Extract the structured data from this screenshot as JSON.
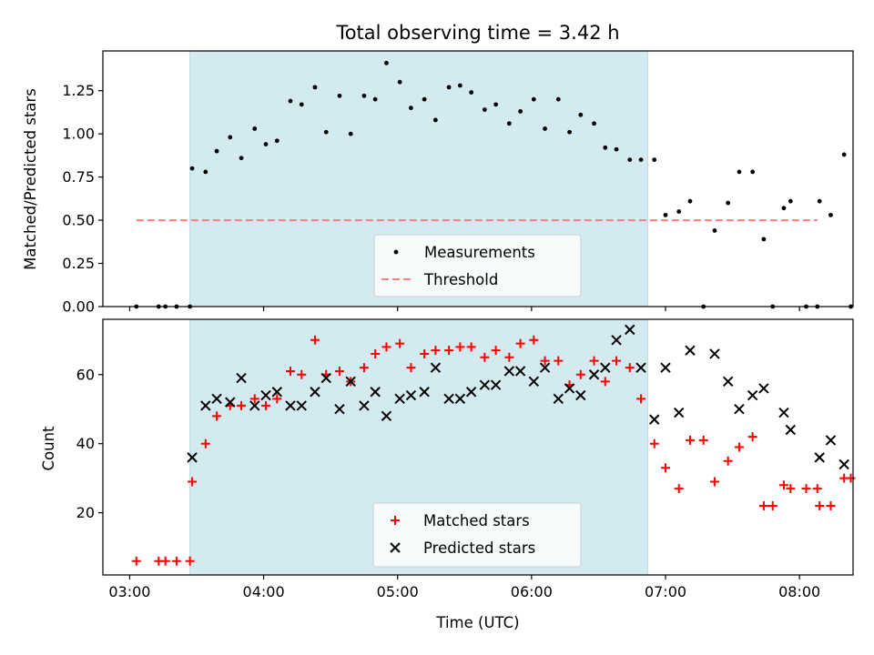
{
  "chart_data": [
    {
      "type": "scatter",
      "title": "Total observing time = 3.42 h",
      "xlabel": "",
      "ylabel": "Matched/Predicted stars",
      "ylim": [
        0,
        1.48
      ],
      "xlim": [
        "02:48",
        "08:24"
      ],
      "yticks": [
        "0.00",
        "0.25",
        "0.50",
        "0.75",
        "1.00",
        "1.25"
      ],
      "highlight_span": {
        "x0": "03:27",
        "x1": "06:52",
        "color": "#d3eaf0"
      },
      "threshold": {
        "name": "Threshold",
        "value": 0.5,
        "x0": "03:03",
        "x1": "08:08",
        "color": "#f77f7f"
      },
      "legend": {
        "placement": "lower center",
        "entries": [
          "Measurements",
          "Threshold"
        ]
      },
      "series": [
        {
          "name": "Measurements",
          "color": "#000000",
          "marker": "dot",
          "points": [
            [
              "03:03",
              0
            ],
            [
              "03:13",
              0
            ],
            [
              "03:16",
              0
            ],
            [
              "03:21",
              0
            ],
            [
              "03:27",
              0
            ],
            [
              "03:28",
              0.8
            ],
            [
              "03:34",
              0.78
            ],
            [
              "03:39",
              0.9
            ],
            [
              "03:45",
              0.98
            ],
            [
              "03:50",
              0.86
            ],
            [
              "03:56",
              1.03
            ],
            [
              "04:01",
              0.94
            ],
            [
              "04:06",
              0.96
            ],
            [
              "04:12",
              1.19
            ],
            [
              "04:17",
              1.17
            ],
            [
              "04:23",
              1.27
            ],
            [
              "04:28",
              1.01
            ],
            [
              "04:34",
              1.22
            ],
            [
              "04:39",
              1.0
            ],
            [
              "04:45",
              1.22
            ],
            [
              "04:50",
              1.2
            ],
            [
              "04:55",
              1.41
            ],
            [
              "05:01",
              1.3
            ],
            [
              "05:06",
              1.15
            ],
            [
              "05:12",
              1.2
            ],
            [
              "05:17",
              1.08
            ],
            [
              "05:23",
              1.27
            ],
            [
              "05:28",
              1.28
            ],
            [
              "05:33",
              1.24
            ],
            [
              "05:39",
              1.14
            ],
            [
              "05:44",
              1.17
            ],
            [
              "05:50",
              1.06
            ],
            [
              "05:55",
              1.13
            ],
            [
              "06:01",
              1.2
            ],
            [
              "06:06",
              1.03
            ],
            [
              "06:12",
              1.2
            ],
            [
              "06:17",
              1.01
            ],
            [
              "06:22",
              1.11
            ],
            [
              "06:28",
              1.06
            ],
            [
              "06:33",
              0.92
            ],
            [
              "06:38",
              0.91
            ],
            [
              "06:44",
              0.85
            ],
            [
              "06:49",
              0.85
            ],
            [
              "06:55",
              0.85
            ],
            [
              "07:00",
              0.53
            ],
            [
              "07:06",
              0.55
            ],
            [
              "07:11",
              0.61
            ],
            [
              "07:17",
              0
            ],
            [
              "07:22",
              0.44
            ],
            [
              "07:28",
              0.6
            ],
            [
              "07:33",
              0.78
            ],
            [
              "07:39",
              0.78
            ],
            [
              "07:44",
              0.39
            ],
            [
              "07:48",
              0
            ],
            [
              "07:53",
              0.57
            ],
            [
              "07:56",
              0.61
            ],
            [
              "08:03",
              0
            ],
            [
              "08:08",
              0
            ],
            [
              "08:09",
              0.61
            ],
            [
              "08:14",
              0.53
            ],
            [
              "08:20",
              0.88
            ],
            [
              "08:23",
              0
            ]
          ]
        }
      ]
    },
    {
      "type": "scatter",
      "title": "",
      "xlabel": "Time (UTC)",
      "ylabel": "Count",
      "ylim": [
        2,
        76
      ],
      "xlim": [
        "02:48",
        "08:24"
      ],
      "xticks": [
        "03:00",
        "04:00",
        "05:00",
        "06:00",
        "07:00",
        "08:00"
      ],
      "yticks": [
        "20",
        "40",
        "60"
      ],
      "legend": {
        "placement": "lower center",
        "entries": [
          "Matched stars",
          "Predicted stars"
        ]
      },
      "series": [
        {
          "name": "Matched stars",
          "color": "#ff0000",
          "marker": "plus",
          "points": [
            [
              "03:03",
              6
            ],
            [
              "03:13",
              6
            ],
            [
              "03:16",
              6
            ],
            [
              "03:21",
              6
            ],
            [
              "03:27",
              6
            ],
            [
              "03:28",
              29
            ],
            [
              "03:34",
              40
            ],
            [
              "03:39",
              48
            ],
            [
              "03:45",
              51
            ],
            [
              "03:50",
              51
            ],
            [
              "03:56",
              53
            ],
            [
              "04:01",
              51
            ],
            [
              "04:06",
              53
            ],
            [
              "04:12",
              61
            ],
            [
              "04:17",
              60
            ],
            [
              "04:23",
              70
            ],
            [
              "04:28",
              60
            ],
            [
              "04:34",
              61
            ],
            [
              "04:39",
              58
            ],
            [
              "04:45",
              62
            ],
            [
              "04:50",
              66
            ],
            [
              "04:55",
              68
            ],
            [
              "05:01",
              69
            ],
            [
              "05:06",
              62
            ],
            [
              "05:12",
              66
            ],
            [
              "05:17",
              67
            ],
            [
              "05:23",
              67
            ],
            [
              "05:28",
              68
            ],
            [
              "05:33",
              68
            ],
            [
              "05:39",
              65
            ],
            [
              "05:44",
              67
            ],
            [
              "05:50",
              65
            ],
            [
              "05:55",
              69
            ],
            [
              "06:01",
              70
            ],
            [
              "06:06",
              64
            ],
            [
              "06:12",
              64
            ],
            [
              "06:17",
              57
            ],
            [
              "06:22",
              60
            ],
            [
              "06:28",
              64
            ],
            [
              "06:33",
              58
            ],
            [
              "06:38",
              64
            ],
            [
              "06:44",
              62
            ],
            [
              "06:49",
              53
            ],
            [
              "06:55",
              40
            ],
            [
              "07:00",
              33
            ],
            [
              "07:06",
              27
            ],
            [
              "07:11",
              41
            ],
            [
              "07:17",
              41
            ],
            [
              "07:22",
              29
            ],
            [
              "07:28",
              35
            ],
            [
              "07:33",
              39
            ],
            [
              "07:39",
              42
            ],
            [
              "07:44",
              22
            ],
            [
              "07:48",
              22
            ],
            [
              "07:53",
              28
            ],
            [
              "07:56",
              27
            ],
            [
              "08:03",
              27
            ],
            [
              "08:08",
              27
            ],
            [
              "08:09",
              22
            ],
            [
              "08:14",
              22
            ],
            [
              "08:20",
              30
            ],
            [
              "08:23",
              30
            ]
          ]
        },
        {
          "name": "Predicted stars",
          "color": "#000000",
          "marker": "x",
          "points": [
            [
              "03:28",
              36
            ],
            [
              "03:34",
              51
            ],
            [
              "03:39",
              53
            ],
            [
              "03:45",
              52
            ],
            [
              "03:50",
              59
            ],
            [
              "03:56",
              51
            ],
            [
              "04:01",
              54
            ],
            [
              "04:06",
              55
            ],
            [
              "04:12",
              51
            ],
            [
              "04:17",
              51
            ],
            [
              "04:23",
              55
            ],
            [
              "04:28",
              59
            ],
            [
              "04:34",
              50
            ],
            [
              "04:39",
              58
            ],
            [
              "04:45",
              51
            ],
            [
              "04:50",
              55
            ],
            [
              "04:55",
              48
            ],
            [
              "05:01",
              53
            ],
            [
              "05:06",
              54
            ],
            [
              "05:12",
              55
            ],
            [
              "05:17",
              62
            ],
            [
              "05:23",
              53
            ],
            [
              "05:28",
              53
            ],
            [
              "05:33",
              55
            ],
            [
              "05:39",
              57
            ],
            [
              "05:44",
              57
            ],
            [
              "05:50",
              61
            ],
            [
              "05:55",
              61
            ],
            [
              "06:01",
              58
            ],
            [
              "06:06",
              62
            ],
            [
              "06:12",
              53
            ],
            [
              "06:17",
              56
            ],
            [
              "06:22",
              54
            ],
            [
              "06:28",
              60
            ],
            [
              "06:33",
              62
            ],
            [
              "06:38",
              70
            ],
            [
              "06:44",
              73
            ],
            [
              "06:49",
              62
            ],
            [
              "06:55",
              47
            ],
            [
              "07:00",
              62
            ],
            [
              "07:06",
              49
            ],
            [
              "07:11",
              67
            ],
            [
              "07:22",
              66
            ],
            [
              "07:28",
              58
            ],
            [
              "07:33",
              50
            ],
            [
              "07:39",
              54
            ],
            [
              "07:44",
              56
            ],
            [
              "07:53",
              49
            ],
            [
              "07:56",
              44
            ],
            [
              "08:09",
              36
            ],
            [
              "08:14",
              41
            ],
            [
              "08:20",
              34
            ]
          ]
        }
      ]
    }
  ]
}
